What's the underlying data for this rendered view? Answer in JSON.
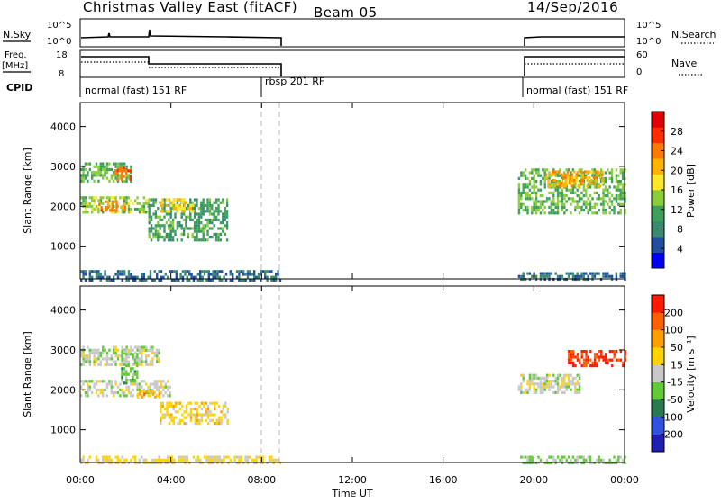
{
  "header": {
    "title": "Christmas Valley East (fitACF)",
    "beam": "Beam 05",
    "date": "14/Sep/2016"
  },
  "summary_panels": {
    "nsky": {
      "label": "N.Sky",
      "tick_top": "10^5",
      "tick_bottom": "10^0",
      "right_label": "N.Search"
    },
    "freq": {
      "label_line1": "Freq.",
      "label_line2": "[MHz]",
      "tick_top": "18",
      "tick_bottom": "8",
      "right_tick_top": "60",
      "right_tick_bottom": "0",
      "right_label": "Nave"
    },
    "cpid": {
      "label": "CPID",
      "modes": [
        {
          "text": "normal (fast) 151 RF"
        },
        {
          "text": "rbsp 201 RF"
        },
        {
          "text": "normal (fast) 151 RF"
        }
      ]
    }
  },
  "panel_power": {
    "ylabel": "Slant Range [km]",
    "yticks": [
      "4000",
      "3000",
      "2000",
      "1000"
    ],
    "colorbar_label": "Power [dB]",
    "colorbar_ticks": [
      "28",
      "24",
      "20",
      "16",
      "12",
      "8",
      "4"
    ],
    "colorbar_colors": [
      "#0000ee",
      "#1f4f9e",
      "#3a8a70",
      "#3ea05a",
      "#8acd3c",
      "#ffe82b",
      "#ffb400",
      "#ff7a00",
      "#ff2d00",
      "#e00000"
    ]
  },
  "panel_velocity": {
    "ylabel": "Slant Range [km]",
    "yticks": [
      "4000",
      "3000",
      "2000",
      "1000"
    ],
    "colorbar_label": "Velocity [m s⁻¹]",
    "colorbar_ticks": [
      "200",
      "100",
      "50",
      "15",
      "-15",
      "-50",
      "-100",
      "-200"
    ],
    "colorbar_colors": [
      "#1f1fb4",
      "#3050e0",
      "#2a7a50",
      "#63c93a",
      "#c8c8c8",
      "#ffd400",
      "#ffa000",
      "#ff6000",
      "#ff1a00"
    ]
  },
  "xaxis": {
    "label": "Time UT",
    "ticks": [
      "00:00",
      "04:00",
      "08:00",
      "12:00",
      "16:00",
      "20:00",
      "00:00"
    ]
  },
  "chart_data": [
    {
      "type": "heatmap",
      "title": "Power [dB]",
      "xlabel": "Time UT",
      "ylabel": "Slant Range [km]",
      "xlim_hours": [
        0,
        24
      ],
      "ylim": [
        180,
        4600
      ],
      "clim": [
        0,
        30
      ],
      "regions": [
        {
          "t": [
            0.0,
            2.2
          ],
          "range": [
            2650,
            3100
          ],
          "value": 12
        },
        {
          "t": [
            1.5,
            2.2
          ],
          "range": [
            2700,
            3000
          ],
          "value": 24
        },
        {
          "t": [
            0.0,
            3.0
          ],
          "range": [
            1850,
            2250
          ],
          "value": 14
        },
        {
          "t": [
            0.8,
            2.0
          ],
          "range": [
            1900,
            2150
          ],
          "value": 22
        },
        {
          "t": [
            3.0,
            6.5
          ],
          "range": [
            1150,
            2200
          ],
          "value": 10
        },
        {
          "t": [
            3.5,
            5.0
          ],
          "range": [
            1900,
            2200
          ],
          "value": 18
        },
        {
          "t": [
            0.0,
            8.8
          ],
          "range": [
            180,
            400
          ],
          "value": 6
        },
        {
          "t": [
            19.3,
            24.0
          ],
          "range": [
            1850,
            2950
          ],
          "value": 12
        },
        {
          "t": [
            20.5,
            23.0
          ],
          "range": [
            2500,
            2900
          ],
          "value": 20
        },
        {
          "t": [
            19.3,
            24.0
          ],
          "range": [
            180,
            350
          ],
          "value": 6
        }
      ]
    },
    {
      "type": "heatmap",
      "title": "Velocity [m s⁻¹]",
      "xlabel": "Time UT",
      "ylabel": "Slant Range [km]",
      "xlim_hours": [
        0,
        24
      ],
      "ylim": [
        180,
        4600
      ],
      "clim": [
        -200,
        200
      ],
      "regions": [
        {
          "t": [
            0.0,
            3.5
          ],
          "range": [
            2650,
            3100
          ],
          "value": 0
        },
        {
          "t": [
            1.8,
            2.5
          ],
          "range": [
            2200,
            3000
          ],
          "value": -40
        },
        {
          "t": [
            0.0,
            4.0
          ],
          "range": [
            1850,
            2250
          ],
          "value": 0
        },
        {
          "t": [
            2.5,
            3.5
          ],
          "range": [
            1850,
            2000
          ],
          "value": 90
        },
        {
          "t": [
            3.5,
            6.5
          ],
          "range": [
            1150,
            1700
          ],
          "value": 40
        },
        {
          "t": [
            0.0,
            8.8
          ],
          "range": [
            180,
            350
          ],
          "value": 30
        },
        {
          "t": [
            19.3,
            22.0
          ],
          "range": [
            1900,
            2400
          ],
          "value": 0
        },
        {
          "t": [
            21.5,
            24.0
          ],
          "range": [
            2600,
            3000
          ],
          "value": 160
        },
        {
          "t": [
            19.3,
            24.0
          ],
          "range": [
            180,
            350
          ],
          "value": -30
        }
      ]
    }
  ]
}
